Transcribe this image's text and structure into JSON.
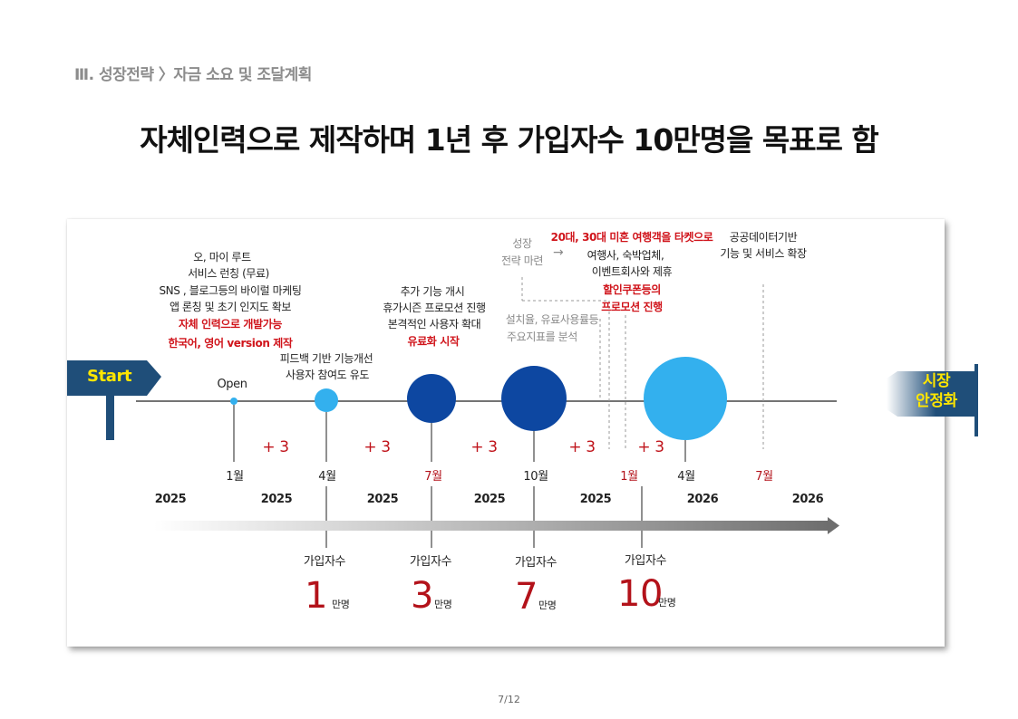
{
  "header": {
    "breadcrumb": "Ⅲ. 성장전략 〉자금 소요 및 조달계획",
    "title": "자체인력으로 제작하며 1년 후 가입자수 10만명을 목표로 함"
  },
  "timeline": {
    "start_label": "Start",
    "end_label_line1": "시장",
    "end_label_line2": "안정화",
    "open_label": "Open",
    "plus_labels": [
      "+ 3",
      "+ 3",
      "+ 3",
      "+ 3",
      "+ 3"
    ],
    "months": [
      "1월",
      "4월",
      "7월",
      "10월",
      "1월",
      "4월",
      "7월"
    ],
    "years": [
      "2025",
      "2025",
      "2025",
      "2025",
      "2025",
      "2026",
      "2026"
    ],
    "phase1": {
      "lines": [
        "오, 마이 루트",
        "서비스 런칭 (무료)",
        "SNS , 블로그등의 바이럴 마케팅",
        "앱 론칭 및 초기 인지도 확보"
      ],
      "red_lines": [
        "자체 인력으로 개발가능",
        "한국어, 영어 version 제작"
      ]
    },
    "phase2": {
      "lines": [
        "피드백 기반 기능개선",
        "사용자 참여도 유도"
      ]
    },
    "phase3": {
      "lines": [
        "추가 기능 개시",
        "휴가시즌 프로모션 진행",
        "본격적인 사용자 확대"
      ],
      "red_line": "유료화 시작"
    },
    "phase4": {
      "gray_label_1": "성장",
      "gray_label_2": "전략 마련",
      "arrow": "→",
      "red_top": "20대, 30대 미혼 여행객을 타켓으로",
      "lines": [
        "여행사, 숙박업체,",
        "이벤트회사와 제휴"
      ],
      "red_lines": [
        "할인쿠폰등의",
        "프로모션 진행"
      ],
      "gray_lines": [
        "설치율, 유료사용률등",
        "주요지표를 분석"
      ]
    },
    "phase5": {
      "lines": [
        "공공데이터기반",
        "기능 및 서비스 확장"
      ]
    },
    "subscriber_label": "가입자수",
    "subscribers": [
      {
        "value": "1",
        "unit": "만명"
      },
      {
        "value": "3",
        "unit": "만명"
      },
      {
        "value": "7",
        "unit": "만명"
      },
      {
        "value": "10",
        "unit": "만명"
      }
    ]
  },
  "colors": {
    "navy": "#1f4e79",
    "dark_blue": "#0d47a1",
    "light_blue": "#33b0ee",
    "accent_red": "#d0141b",
    "yellow_text": "#ffe600"
  },
  "page": {
    "number": "7/12"
  }
}
